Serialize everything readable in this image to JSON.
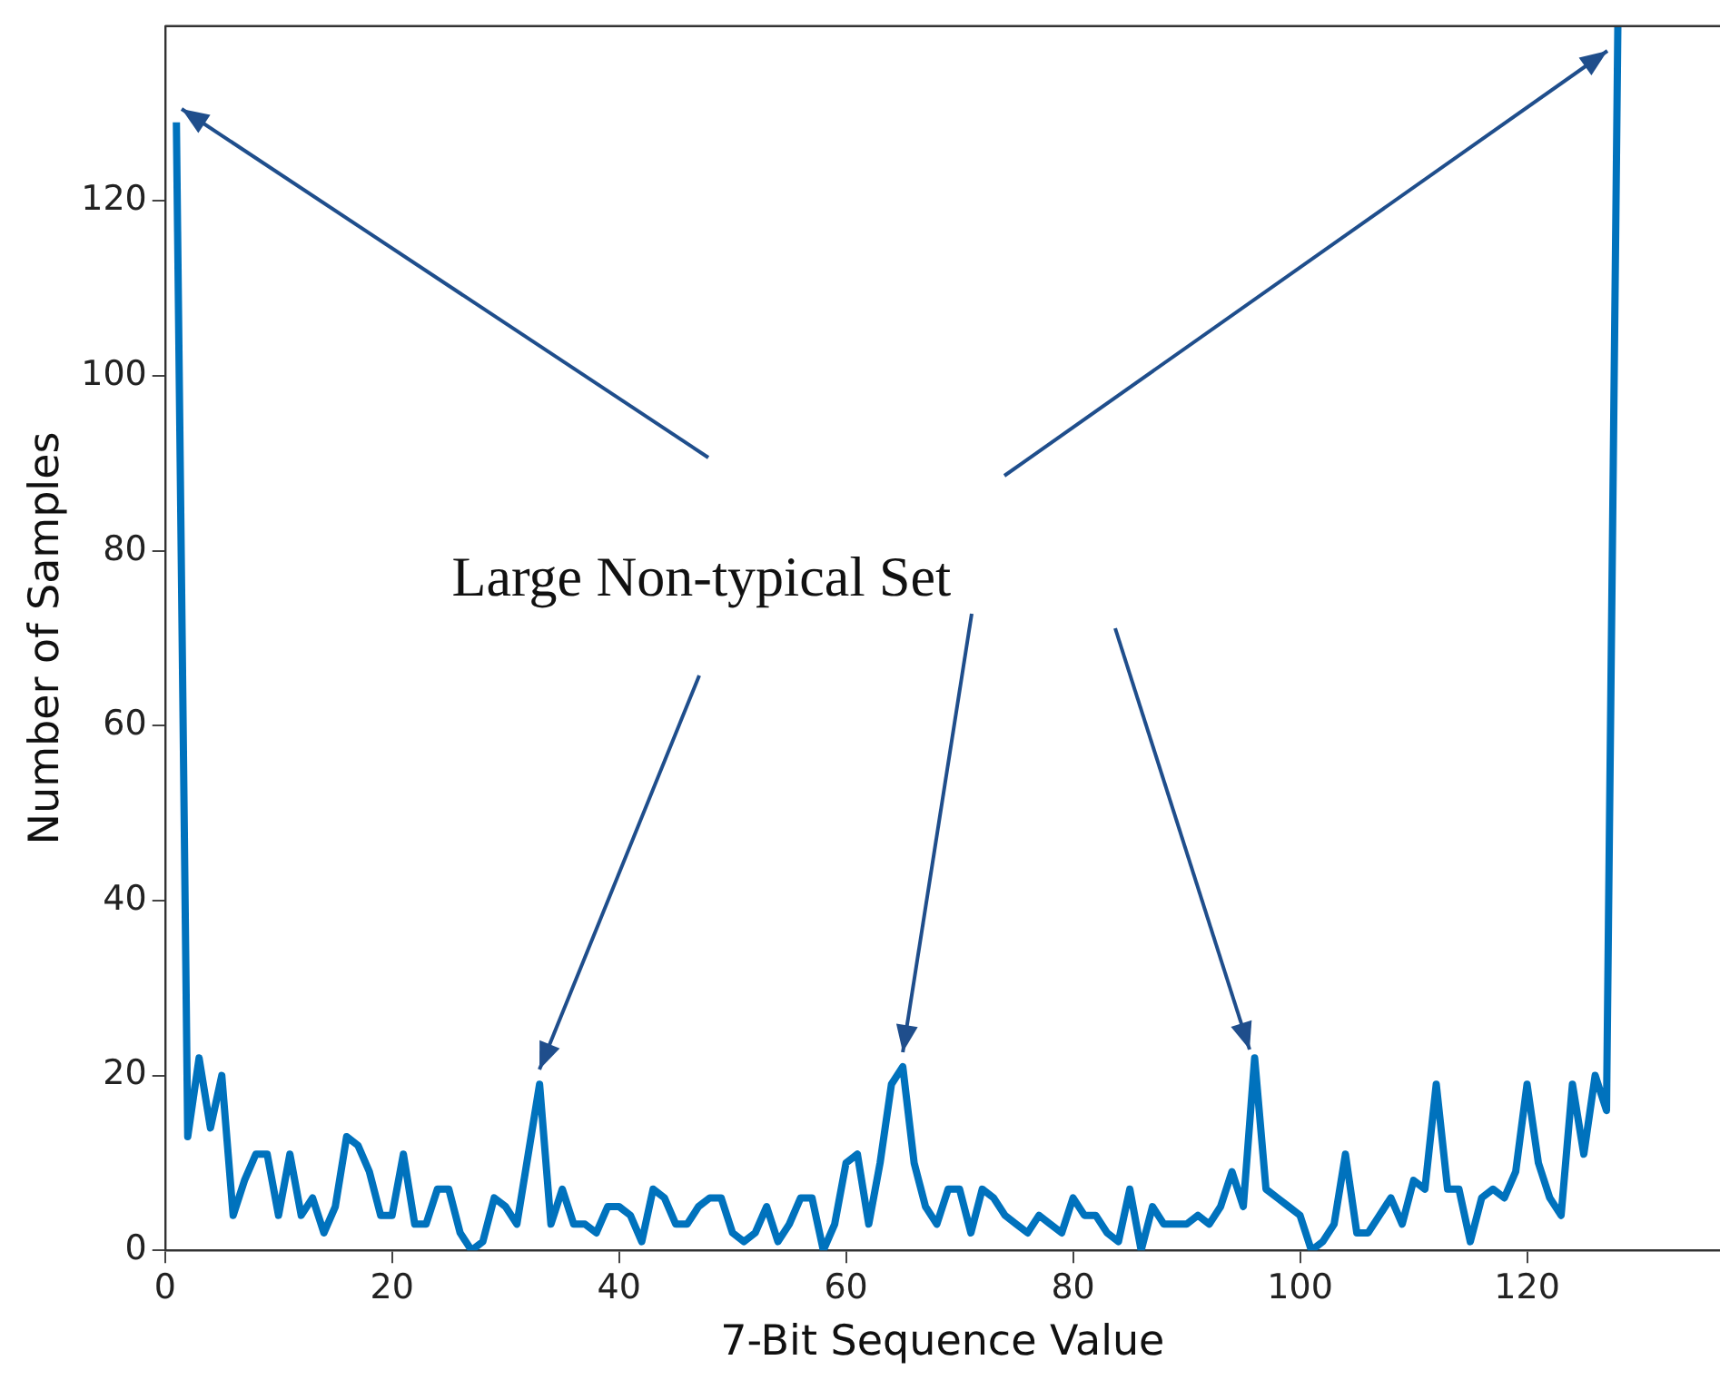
{
  "chart_data": {
    "type": "line",
    "xlabel": "7-Bit Sequence Value",
    "ylabel": "Number of Samples",
    "annotations": [
      {
        "text": "Large Non-typical Set",
        "x": 65,
        "y": 21
      }
    ],
    "x": [
      1,
      2,
      3,
      4,
      5,
      6,
      7,
      8,
      9,
      10,
      11,
      12,
      13,
      14,
      15,
      16,
      17,
      18,
      19,
      20,
      21,
      22,
      23,
      24,
      25,
      26,
      27,
      28,
      29,
      30,
      31,
      32,
      33,
      34,
      35,
      36,
      37,
      38,
      39,
      40,
      41,
      42,
      43,
      44,
      45,
      46,
      47,
      48,
      49,
      50,
      51,
      52,
      53,
      54,
      55,
      56,
      57,
      58,
      59,
      60,
      61,
      62,
      63,
      64,
      65,
      66,
      67,
      68,
      69,
      70,
      71,
      72,
      73,
      74,
      75,
      76,
      77,
      78,
      79,
      80,
      81,
      82,
      83,
      84,
      85,
      86,
      87,
      88,
      89,
      90,
      91,
      92,
      93,
      94,
      95,
      96,
      97,
      98,
      99,
      100,
      101,
      102,
      103,
      104,
      105,
      106,
      107,
      108,
      109,
      110,
      111,
      112,
      113,
      114,
      115,
      116,
      117,
      118,
      119,
      120,
      121,
      122,
      123,
      124,
      125,
      126,
      127,
      128
    ],
    "series": [
      {
        "color": "#0072bd",
        "values": [
          129,
          13,
          22,
          14,
          20,
          4,
          8,
          11,
          11,
          4,
          11,
          4,
          6,
          2,
          5,
          13,
          12,
          9,
          4,
          4,
          11,
          3,
          3,
          7,
          7,
          2,
          0,
          1,
          6,
          5,
          3,
          11,
          19,
          3,
          7,
          3,
          3,
          2,
          5,
          5,
          4,
          1,
          7,
          6,
          3,
          3,
          5,
          6,
          6,
          2,
          1,
          2,
          5,
          1,
          3,
          6,
          6,
          0,
          3,
          10,
          11,
          3,
          10,
          19,
          21,
          10,
          5,
          3,
          7,
          7,
          2,
          7,
          6,
          4,
          3,
          2,
          4,
          3,
          2,
          6,
          4,
          4,
          2,
          1,
          7,
          0,
          5,
          3,
          3,
          3,
          4,
          3,
          5,
          9,
          5,
          22,
          7,
          6,
          5,
          4,
          0,
          1,
          3,
          11,
          2,
          2,
          4,
          6,
          3,
          8,
          7,
          19,
          7,
          7,
          1,
          6,
          7,
          6,
          9,
          19,
          10,
          6,
          4,
          19,
          11,
          20,
          16,
          140
        ]
      }
    ],
    "xlim": [
      0,
      137
    ],
    "ylim": [
      0,
      140
    ],
    "xticks": [
      0,
      20,
      40,
      60,
      80,
      100,
      120
    ],
    "yticks": [
      0,
      20,
      40,
      60,
      80,
      100,
      120
    ],
    "grid": false,
    "legend": false,
    "marker": "none",
    "line_style": "solid"
  }
}
